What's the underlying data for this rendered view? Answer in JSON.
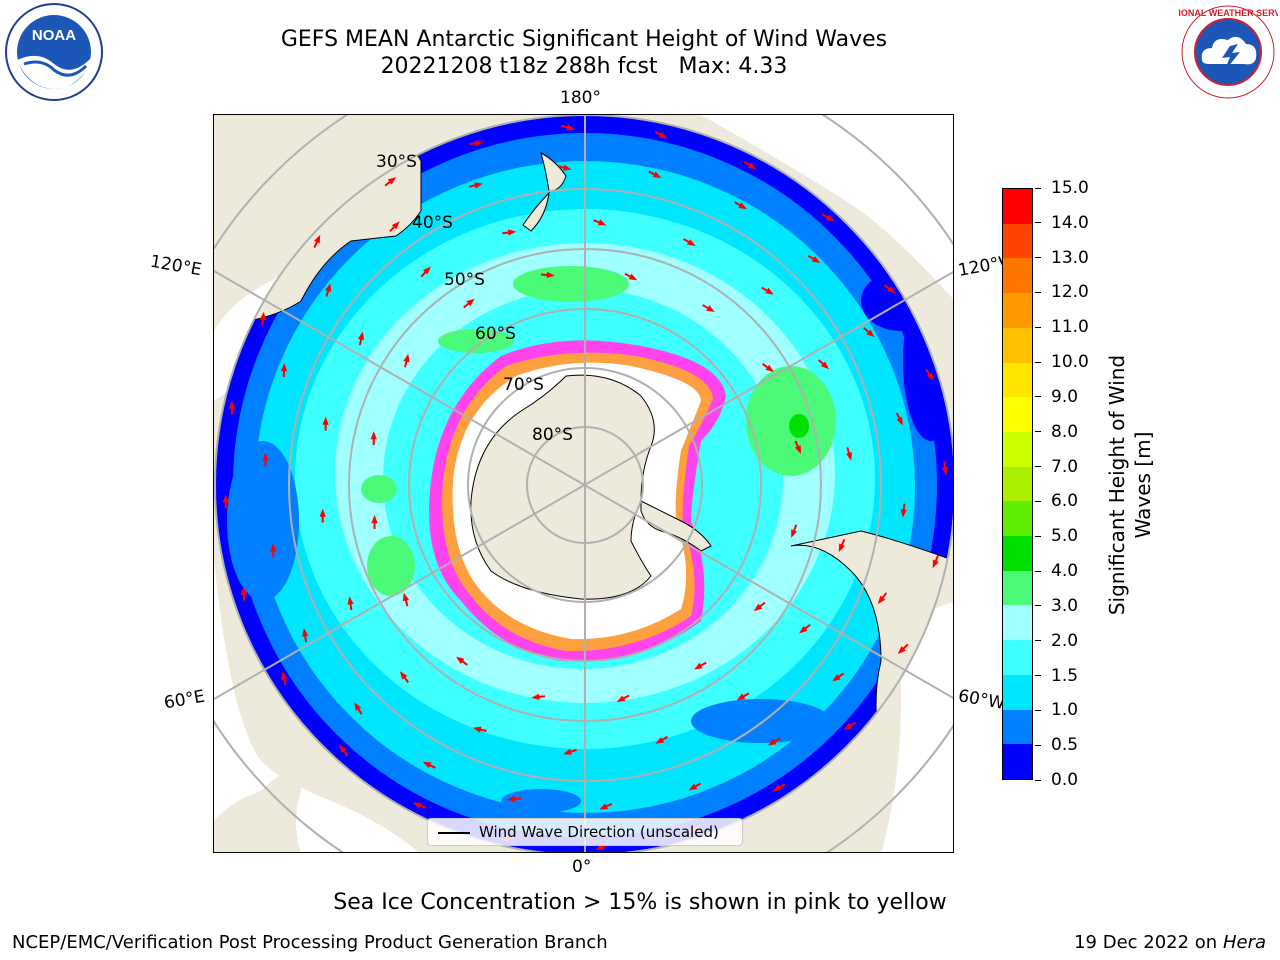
{
  "header": {
    "title_line1": "GEFS MEAN Antarctic Significant Height of Wind Waves",
    "title_line2_run": "20221208 t18z 288h fcst",
    "title_line2_max": "Max: 4.33"
  },
  "logos": {
    "left": {
      "icon": "noaa-logo",
      "text": "NOAA"
    },
    "right": {
      "icon": "national-weather-service-logo",
      "text": "NATIONAL WEATHER SERVICE"
    }
  },
  "map": {
    "projection": "south-polar-stereographic",
    "longitude_labels": {
      "top": "180°",
      "upper_left": "120°E",
      "upper_right": "120°W",
      "lower_left": "60°E",
      "lower_right": "60°W",
      "bottom": "0°"
    },
    "latitude_labels": [
      "30°S",
      "40°S",
      "50°S",
      "60°S",
      "70°S",
      "80°S"
    ],
    "legend_label": "Wind Wave Direction (unscaled)",
    "colors": {
      "land": "#eeeadb",
      "ice": "#ffffff",
      "sea_ice_edge": "#ff44ee",
      "arrow": "#ff0000",
      "grid": "#b0b0b0"
    }
  },
  "colorbar": {
    "title_line1": "Significant Height of Wind",
    "title_line2": "Waves [m]",
    "ticks": [
      "0.0",
      "0.5",
      "1.0",
      "1.5",
      "2.0",
      "3.0",
      "4.0",
      "5.0",
      "6.0",
      "7.0",
      "8.0",
      "9.0",
      "10.0",
      "11.0",
      "12.0",
      "13.0",
      "14.0",
      "15.0"
    ],
    "colors": [
      "#0000ff",
      "#0080ff",
      "#00e6ff",
      "#40ffff",
      "#a0ffff",
      "#4cfa7a",
      "#00e000",
      "#5ef000",
      "#aaf000",
      "#ccff00",
      "#ffff00",
      "#ffe600",
      "#ffc000",
      "#ff9900",
      "#ff7700",
      "#ff4400",
      "#ff0000"
    ]
  },
  "caption": "Sea Ice Concentration > 15% is shown in pink to yellow",
  "footer": {
    "left": "NCEP/EMC/Verification Post Processing Product Generation Branch",
    "right_date": "19 Dec 2022 on",
    "right_host": "Hera"
  }
}
